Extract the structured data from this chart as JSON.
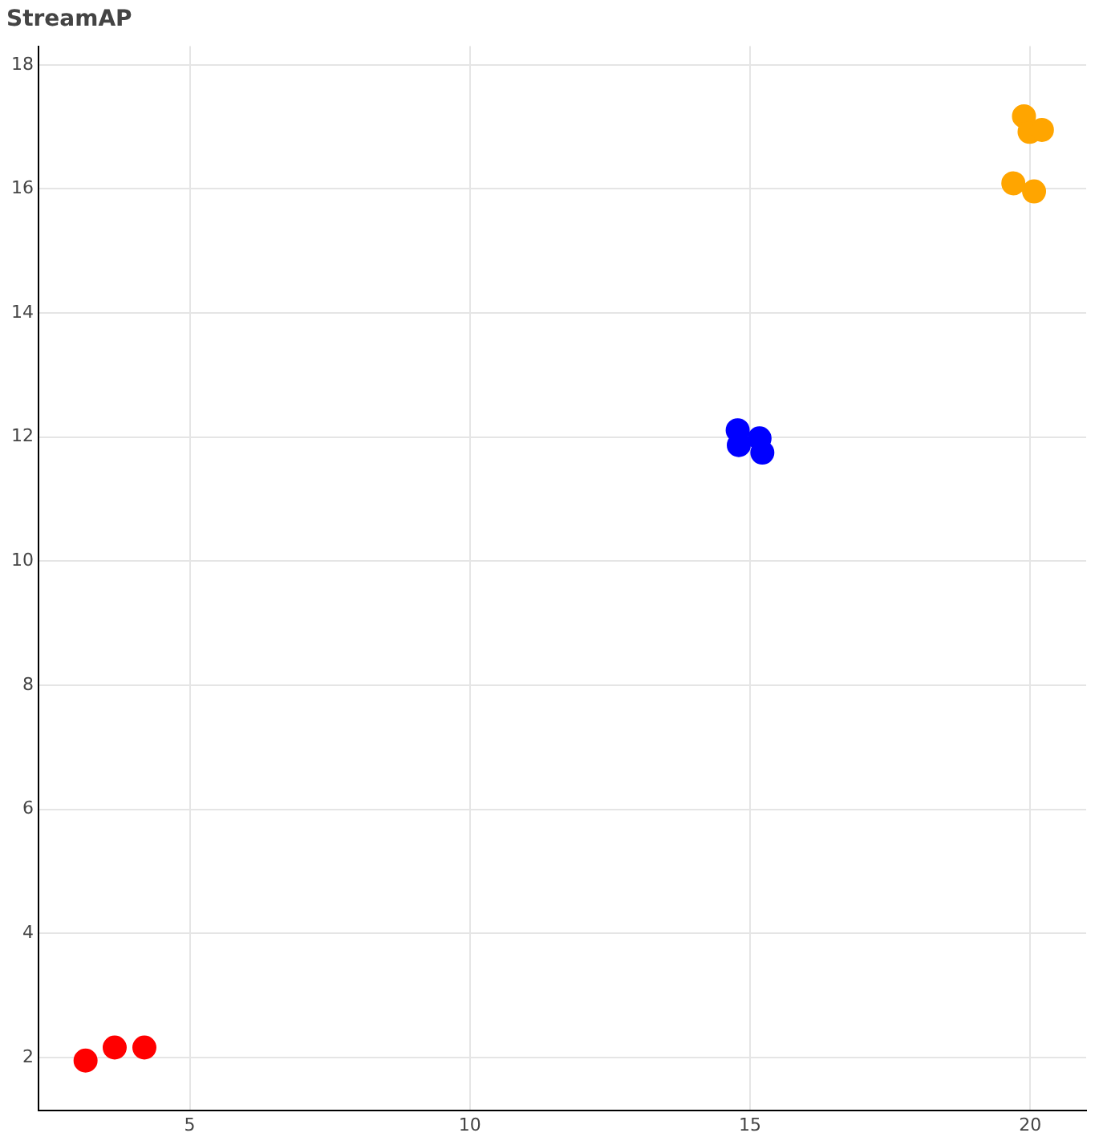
{
  "chart_data": {
    "type": "scatter",
    "title": "StreamAP",
    "series": [
      {
        "color": "#ff0000",
        "x": [
          3.14,
          3.66,
          4.19
        ],
        "values": [
          1.95,
          2.16,
          2.16
        ]
      },
      {
        "color": "#0000ff",
        "x": [
          14.78,
          14.8,
          15.17,
          15.22
        ],
        "values": [
          12.11,
          11.87,
          11.98,
          11.75
        ]
      },
      {
        "color": "#ffa500",
        "x": [
          19.89,
          19.99,
          20.21,
          19.7,
          20.07
        ],
        "values": [
          17.17,
          16.92,
          16.95,
          16.09,
          15.96
        ]
      }
    ],
    "xlim": [
      2.3,
      21
    ],
    "xticks": [
      5,
      10,
      15,
      20
    ],
    "ylim": [
      1.15,
      18.3
    ],
    "yticks": [
      2,
      4,
      6,
      8,
      10,
      12,
      14,
      16,
      18
    ],
    "grid": true,
    "legend": false,
    "marker": "circle"
  }
}
